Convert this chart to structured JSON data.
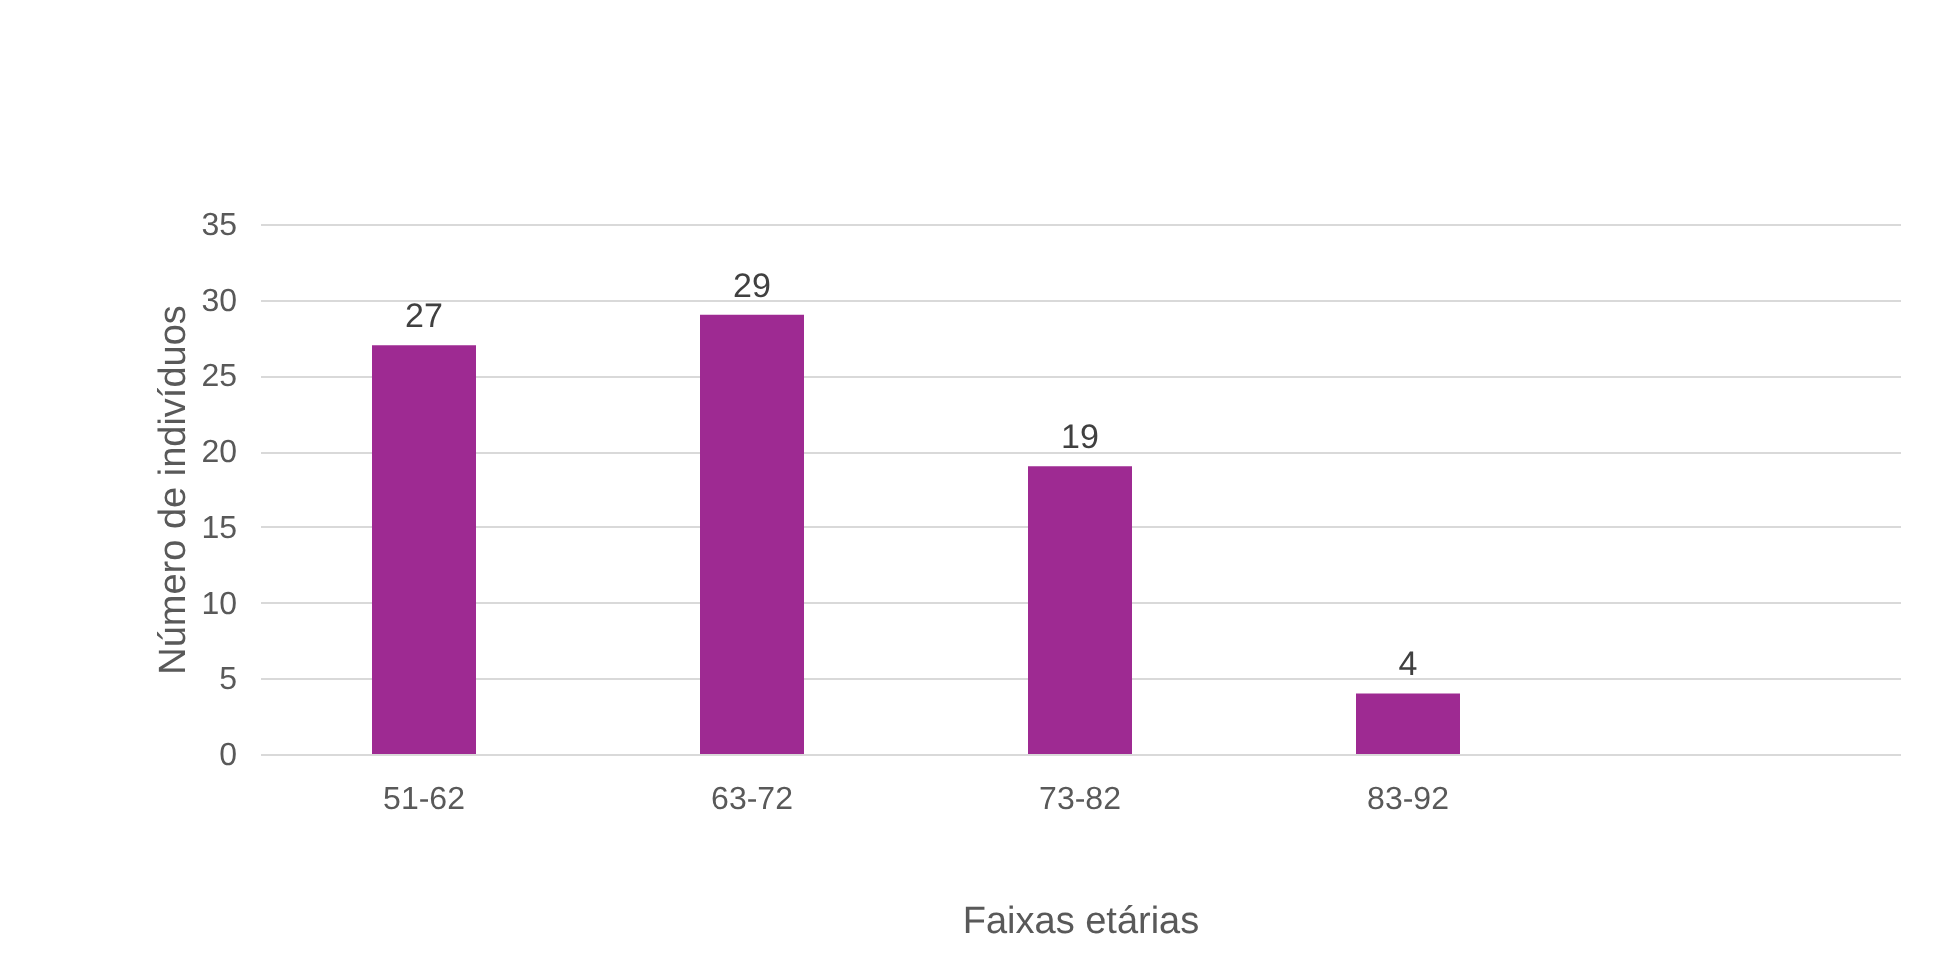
{
  "chart_data": {
    "type": "bar",
    "xlabel": "Faixas etárias",
    "ylabel": "Número de indivíduos",
    "categories": [
      "51-62",
      "63-72",
      "73-82",
      "83-92",
      null
    ],
    "values": [
      27,
      29,
      19,
      4,
      null
    ],
    "color": "#9e2a92",
    "ylim": [
      0,
      35
    ],
    "yticks": [
      0,
      5,
      10,
      15,
      20,
      25,
      30,
      35
    ],
    "grid": "y",
    "data_labels": true
  }
}
